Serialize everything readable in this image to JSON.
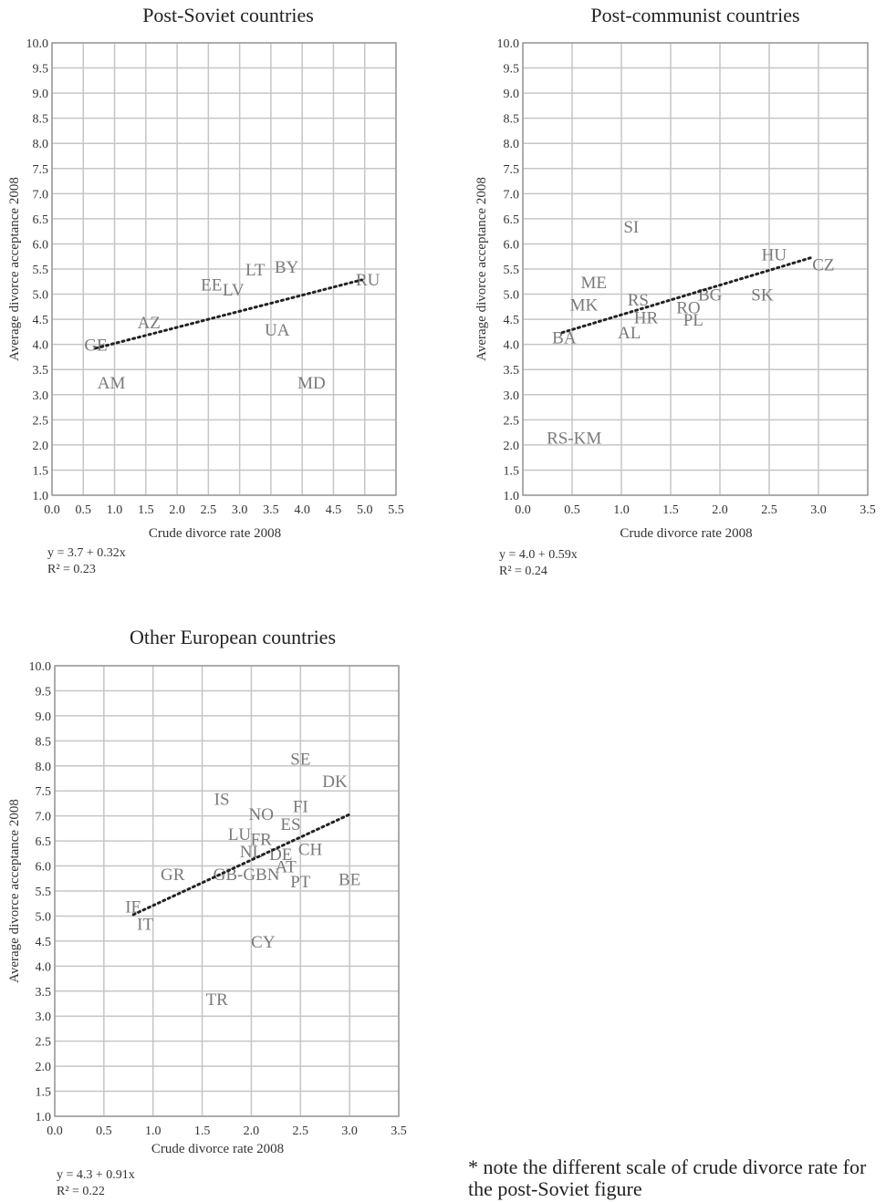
{
  "footnote": "* note the different scale of crude divorce rate for the post-Soviet figure",
  "chart_data": [
    {
      "type": "scatter",
      "title": "Post-Soviet countries",
      "xlabel": "Crude divorce rate 2008",
      "ylabel": "Average divorce acceptance 2008",
      "xlim": [
        0,
        5.5
      ],
      "ylim": [
        1,
        10
      ],
      "xticks": [
        "0.0",
        "0.5",
        "1.0",
        "1.5",
        "2.0",
        "2.5",
        "3.0",
        "3.5",
        "4.0",
        "4.5",
        "5.0",
        "5.5"
      ],
      "yticks": [
        "1.0",
        "1.5",
        "2.0",
        "2.5",
        "3.0",
        "3.5",
        "4.0",
        "4.5",
        "5.0",
        "5.5",
        "6.0",
        "6.5",
        "7.0",
        "7.5",
        "8.0",
        "8.5",
        "9.0",
        "9.5",
        "10.0"
      ],
      "grid": true,
      "equation": "y = 3.7 + 0.32x",
      "r2": "R² = 0.23",
      "trendline": {
        "intercept": 3.7,
        "slope": 0.32,
        "x": [
          0.7,
          4.95
        ]
      },
      "points": [
        {
          "label": "GE",
          "x": 0.7,
          "y": 4.0
        },
        {
          "label": "AM",
          "x": 0.95,
          "y": 3.25
        },
        {
          "label": "AZ",
          "x": 1.55,
          "y": 4.45
        },
        {
          "label": "EE",
          "x": 2.55,
          "y": 5.2
        },
        {
          "label": "LV",
          "x": 2.9,
          "y": 5.1
        },
        {
          "label": "LT",
          "x": 3.25,
          "y": 5.5
        },
        {
          "label": "BY",
          "x": 3.75,
          "y": 5.55
        },
        {
          "label": "UA",
          "x": 3.6,
          "y": 4.3
        },
        {
          "label": "MD",
          "x": 4.15,
          "y": 3.25
        },
        {
          "label": "RU",
          "x": 5.05,
          "y": 5.3
        }
      ]
    },
    {
      "type": "scatter",
      "title": "Post-communist countries",
      "xlabel": "Crude divorce rate 2008",
      "ylabel": "Average divorce acceptance 2008",
      "xlim": [
        0,
        3.5
      ],
      "ylim": [
        1,
        10
      ],
      "xticks": [
        "0.0",
        "0.5",
        "1.0",
        "1.5",
        "2.0",
        "2.5",
        "3.0",
        "3.5"
      ],
      "yticks": [
        "1.0",
        "1.5",
        "2.0",
        "2.5",
        "3.0",
        "3.5",
        "4.0",
        "4.5",
        "5.0",
        "5.5",
        "6.0",
        "6.5",
        "7.0",
        "7.5",
        "8.0",
        "8.5",
        "9.0",
        "9.5",
        "10.0"
      ],
      "grid": true,
      "equation": "y = 4.0 + 0.59x",
      "r2": "R² = 0.24",
      "trendline": {
        "intercept": 4.0,
        "slope": 0.59,
        "x": [
          0.4,
          2.95
        ]
      },
      "points": [
        {
          "label": "SI",
          "x": 1.1,
          "y": 6.35
        },
        {
          "label": "HU",
          "x": 2.55,
          "y": 5.8
        },
        {
          "label": "CZ",
          "x": 3.05,
          "y": 5.6
        },
        {
          "label": "ME",
          "x": 0.72,
          "y": 5.25
        },
        {
          "label": "MK",
          "x": 0.62,
          "y": 4.8
        },
        {
          "label": "RS",
          "x": 1.17,
          "y": 4.9
        },
        {
          "label": "BG",
          "x": 1.9,
          "y": 5.0
        },
        {
          "label": "SK",
          "x": 2.43,
          "y": 5.0
        },
        {
          "label": "RO",
          "x": 1.68,
          "y": 4.75
        },
        {
          "label": "HR",
          "x": 1.25,
          "y": 4.55
        },
        {
          "label": "PL",
          "x": 1.73,
          "y": 4.5
        },
        {
          "label": "AL",
          "x": 1.08,
          "y": 4.25
        },
        {
          "label": "BA",
          "x": 0.42,
          "y": 4.15
        },
        {
          "label": "RS-KM",
          "x": 0.52,
          "y": 2.15
        }
      ]
    },
    {
      "type": "scatter",
      "title": "Other European countries",
      "xlabel": "Crude divorce rate 2008",
      "ylabel": "Average divorce acceptance 2008",
      "xlim": [
        0,
        3.5
      ],
      "ylim": [
        1,
        10
      ],
      "xticks": [
        "0.0",
        "0.5",
        "1.0",
        "1.5",
        "2.0",
        "2.5",
        "3.0",
        "3.5"
      ],
      "yticks": [
        "1.0",
        "1.5",
        "2.0",
        "2.5",
        "3.0",
        "3.5",
        "4.0",
        "4.5",
        "5.0",
        "5.5",
        "6.0",
        "6.5",
        "7.0",
        "7.5",
        "8.0",
        "8.5",
        "9.0",
        "9.5",
        "10.0"
      ],
      "grid": true,
      "equation": "y = 4.3 + 0.91x",
      "r2": "R² = 0.22",
      "trendline": {
        "intercept": 4.3,
        "slope": 0.91,
        "x": [
          0.8,
          3.0
        ]
      },
      "points": [
        {
          "label": "SE",
          "x": 2.5,
          "y": 8.15
        },
        {
          "label": "DK",
          "x": 2.85,
          "y": 7.7
        },
        {
          "label": "IS",
          "x": 1.7,
          "y": 7.35
        },
        {
          "label": "FI",
          "x": 2.5,
          "y": 7.2
        },
        {
          "label": "NO",
          "x": 2.1,
          "y": 7.05
        },
        {
          "label": "ES",
          "x": 2.4,
          "y": 6.85
        },
        {
          "label": "LU",
          "x": 1.88,
          "y": 6.65
        },
        {
          "label": "FR",
          "x": 2.1,
          "y": 6.55
        },
        {
          "label": "CH",
          "x": 2.6,
          "y": 6.35
        },
        {
          "label": "NL",
          "x": 2.0,
          "y": 6.3
        },
        {
          "label": "DE",
          "x": 2.3,
          "y": 6.25
        },
        {
          "label": "AT",
          "x": 2.35,
          "y": 6.0
        },
        {
          "label": "GR",
          "x": 1.2,
          "y": 5.85
        },
        {
          "label": "GB-GBN",
          "x": 1.95,
          "y": 5.85
        },
        {
          "label": "PT",
          "x": 2.5,
          "y": 5.7
        },
        {
          "label": "BE",
          "x": 3.0,
          "y": 5.75
        },
        {
          "label": "IE",
          "x": 0.8,
          "y": 5.2
        },
        {
          "label": "IT",
          "x": 0.92,
          "y": 4.85
        },
        {
          "label": "CY",
          "x": 2.12,
          "y": 4.5
        },
        {
          "label": "TR",
          "x": 1.65,
          "y": 3.35
        }
      ]
    }
  ]
}
